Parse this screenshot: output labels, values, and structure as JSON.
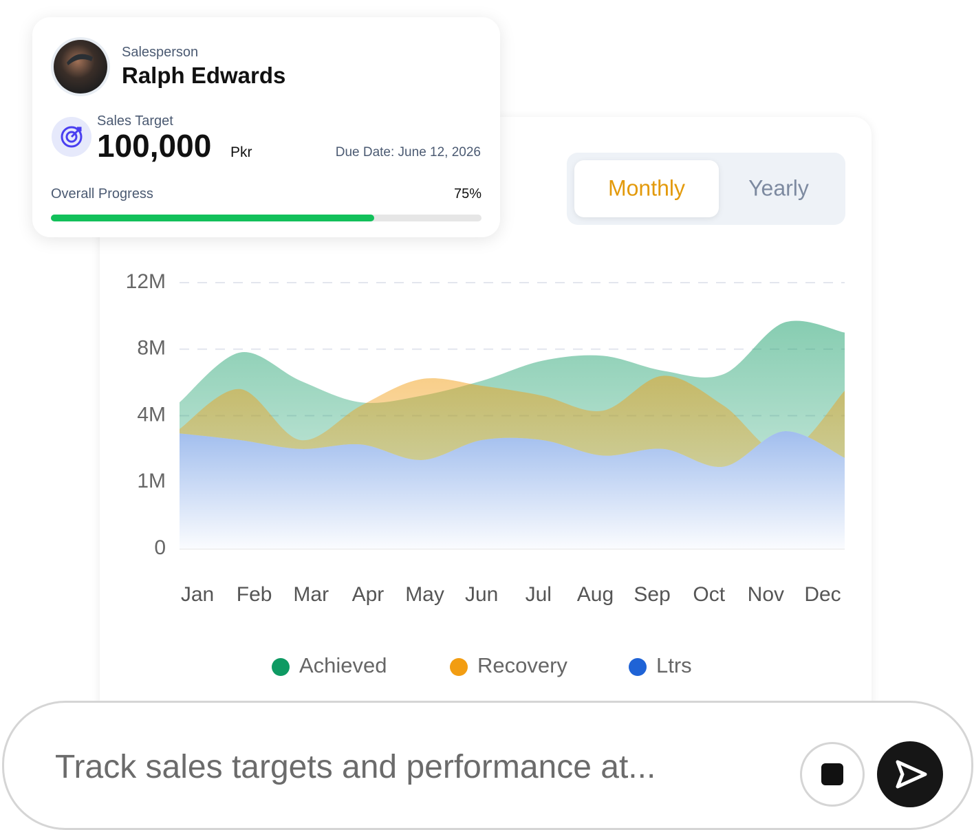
{
  "profile": {
    "role": "Salesperson",
    "name": "Ralph Edwards",
    "target_label": "Sales Target",
    "target_value": "100,000",
    "target_unit": "Pkr",
    "due_date": "Due Date: June 12, 2026",
    "progress_label": "Overall Progress",
    "progress": 75,
    "progress_label_value": "75%"
  },
  "toggle": {
    "options": [
      "Monthly",
      "Yearly"
    ]
  },
  "chart_data": {
    "type": "area",
    "categories": [
      "Jan",
      "Feb",
      "Mar",
      "Apr",
      "May",
      "Jun",
      "Jul",
      "Aug",
      "Sep",
      "Oct",
      "Nov",
      "Dec"
    ],
    "series": [
      {
        "name": "Achieved",
        "color": "#0e9a63",
        "values": [
          4800000,
          7800000,
          6100000,
          4800000,
          5200000,
          6100000,
          7300000,
          7600000,
          6700000,
          6500000,
          9600000,
          9000000
        ]
      },
      {
        "name": "Recovery",
        "color": "#f29d12",
        "values": [
          3400000,
          5600000,
          2900000,
          4600000,
          6200000,
          5800000,
          5200000,
          4300000,
          6400000,
          4600000,
          2300000,
          5500000
        ]
      },
      {
        "name": "Ltrs",
        "color": "#1f63d6",
        "values": [
          3200000,
          2900000,
          2500000,
          2700000,
          2000000,
          2900000,
          2900000,
          2200000,
          2500000,
          1700000,
          3300000,
          2100000
        ]
      }
    ],
    "ylim": [
      0,
      12000000
    ],
    "yticks": [
      0,
      {
        "value": 1000000,
        "label": "1M"
      },
      {
        "value": 4000000,
        "label": "4M"
      },
      {
        "value": 8000000,
        "label": "8M"
      },
      {
        "value": 12000000,
        "label": "12M"
      }
    ],
    "grid": true
  },
  "input": {
    "placeholder": "Track sales targets and performance at..."
  }
}
